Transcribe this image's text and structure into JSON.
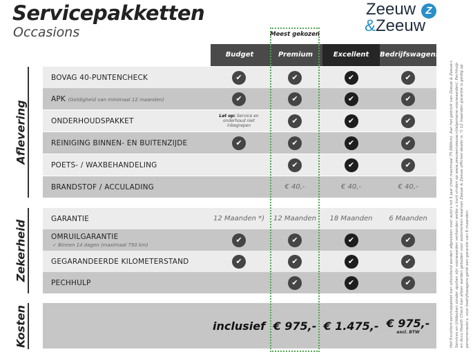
{
  "header": {
    "title": "Servicepakketten",
    "subtitle": "Occasions",
    "logo_line1": "Zeeuw",
    "logo_amp": "&",
    "logo_line2": "Zeeuw",
    "best_label": "Meest gekozen"
  },
  "columns": [
    "Budget",
    "Premium",
    "Excellent",
    "Bedrijfswagens"
  ],
  "colors": {
    "header_dark": "#4a4a4a",
    "header_darker": "#262626",
    "row_light": "#ececec",
    "row_dark": "#c6c6c6",
    "highlight_border": "#4aa64a",
    "logo_blue": "#2a8fc8"
  },
  "sections": [
    {
      "title": "Aflevering",
      "rows": [
        {
          "label": "BOVAG 40-PUNTENCHECK",
          "cells": [
            "check",
            "check",
            "check",
            "check"
          ]
        },
        {
          "label": "APK",
          "note": "(Geldigheid van minimaal 12 maanden)",
          "cells": [
            "check",
            "check",
            "check",
            "check"
          ]
        },
        {
          "label": "ONDERHOUDSPAKKET",
          "budget_note_bold": "Let op:",
          "budget_note": "Service en onderhoud niet inbegrepen",
          "cells": [
            "note",
            "check",
            "check",
            "check"
          ]
        },
        {
          "label": "REINIGING BINNEN- EN BUITENZIJDE",
          "cells": [
            "check",
            "check",
            "check",
            "check"
          ]
        },
        {
          "label": "POETS- / WAXBEHANDELING",
          "cells": [
            "",
            "check",
            "check",
            "check"
          ]
        },
        {
          "label": "BRANDSTOF / ACCULADING",
          "cells": [
            "",
            "€ 40,-",
            "€ 40,-",
            "€ 40,-"
          ]
        }
      ]
    },
    {
      "title": "Zekerheid",
      "rows": [
        {
          "label": "GARANTIE",
          "cells": [
            "12 Maanden *)",
            "12 Maanden",
            "18 Maanden",
            "6 Maanden"
          ]
        },
        {
          "label": "OMRUILGARANTIE",
          "sub": "✓  Binnen 14 dagen (maximaal 750 km)",
          "cells": [
            "check",
            "check",
            "check",
            "check"
          ]
        },
        {
          "label": "GEGARANDEERDE KILOMETERSTAND",
          "cells": [
            "check",
            "check",
            "check",
            "check"
          ]
        },
        {
          "label": "PECHHULP",
          "cells": [
            "",
            "check",
            "check",
            "check"
          ]
        }
      ]
    },
    {
      "title": "Kosten",
      "prices": [
        "inclusief",
        "€ 975,-",
        "€ 1.475,-",
        "€ 975,-"
      ],
      "price_note": "excl. BTW"
    }
  ],
  "footnote": "Het Excellent-servicepakket kan uitsluitend worden afgesloten voor auto's tot 5 jaar (met maximaal 75.000km). Aan het gebruik van Zeeuw & Zeeuw+ Services en Uitdeuken zonder spuiten zijn voorwaarden verbonden welke u kunt vinden op www.zeeuwenzeeuw.nl/algemene-voorwaarden/. Pechhulp en Accu Health Check kan alleen worden geboden voor automerken waarvan Zeeuw & Zeeuw officieel dealer is. *) 12 maanden garantie is geldig op personenauto's, voor bedrijfswagens geldt een garantie van 6 maanden."
}
